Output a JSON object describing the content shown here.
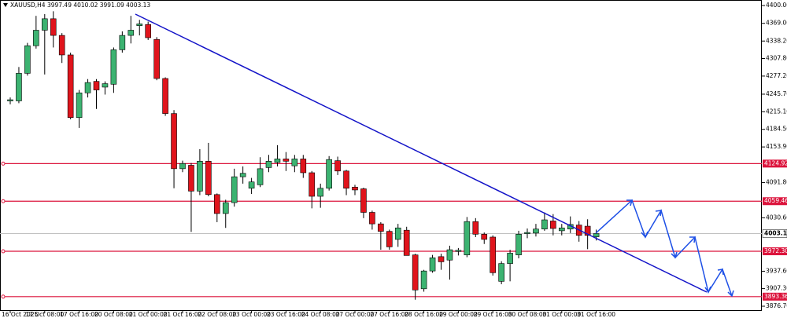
{
  "chart_data": {
    "type": "candlestick",
    "title": "XAUUSD,H4  3997.49 4010.02 3991.09 4003.13",
    "categories": [
      "16 Oct 2025",
      null,
      null,
      null,
      "17 Oct 08:00",
      null,
      null,
      null,
      "17 Oct 16:00",
      null,
      null,
      null,
      "20 Oct 08:00",
      null,
      null,
      null,
      "21 Oct 00:00",
      null,
      null,
      null,
      "21 Oct 16:00",
      null,
      null,
      null,
      "22 Oct 08:00",
      null,
      null,
      null,
      "23 Oct 00:00",
      null,
      null,
      null,
      "23 Oct 16:00",
      null,
      null,
      null,
      "24 Oct 08:00",
      null,
      null,
      null,
      "27 Oct 00:00",
      null,
      null,
      null,
      "27 Oct 16:00",
      null,
      null,
      null,
      "28 Oct 16:00",
      null,
      null,
      null,
      "29 Oct 00:00",
      null,
      null,
      null,
      "29 Oct 16:00",
      null,
      null,
      null,
      "30 Oct 08:00",
      null,
      null,
      null,
      "31 Oct 00:00",
      null,
      null,
      null,
      "31 Oct 16:00"
    ],
    "open": [
      4234,
      4234,
      4282,
      4330,
      4357,
      4377,
      4348,
      4314,
      4205,
      4248,
      4268,
      4258,
      4263,
      4323,
      4348,
      4365,
      4367,
      4341,
      4273,
      4212,
      4116,
      4122,
      4077,
      4129,
      4071,
      4038,
      4057,
      4102,
      4082,
      4088,
      4118,
      4127,
      4133,
      4121,
      4133,
      4109,
      4068,
      4082,
      4130,
      4112,
      4084,
      4081,
      4040,
      4020,
      4007,
      3993,
      4009,
      3966,
      3907,
      3938,
      3963,
      3957,
      3972,
      3966,
      4024,
      4002,
      3997,
      3920,
      3951,
      3966,
      4003,
      4004,
      4011,
      4025,
      4008,
      4011,
      4018,
      4016,
      3997.49
    ],
    "high": [
      4240,
      4293,
      4335,
      4382,
      4385,
      4390,
      4352,
      4318,
      4253,
      4272,
      4272,
      4268,
      4327,
      4355,
      4382,
      4375,
      4372,
      4345,
      4275,
      4218,
      4130,
      4126,
      4150,
      4161,
      4073,
      4062,
      4116,
      4120,
      4100,
      4136,
      4140,
      4157,
      4145,
      4140,
      4140,
      4112,
      4090,
      4138,
      4137,
      4114,
      4088,
      4083,
      4043,
      4023,
      4010,
      4020,
      4015,
      3968,
      3940,
      3966,
      3968,
      3982,
      3978,
      4032,
      4030,
      4005,
      4000,
      3955,
      3975,
      4008,
      4012,
      4020,
      4040,
      4037,
      4020,
      4033,
      4025,
      4028,
      4010.02
    ],
    "low": [
      4228,
      4230,
      4278,
      4325,
      4280,
      4327,
      4300,
      4202,
      4187,
      4240,
      4220,
      4245,
      4248,
      4318,
      4334,
      4348,
      4340,
      4270,
      4208,
      4082,
      4110,
      4006,
      4070,
      4068,
      4023,
      4013,
      4050,
      4090,
      4072,
      4084,
      4110,
      4120,
      4112,
      4110,
      4100,
      4047,
      4048,
      4078,
      4105,
      4070,
      4070,
      4030,
      4010,
      3975,
      3975,
      3980,
      3965,
      3888,
      3902,
      3935,
      3940,
      3923,
      3965,
      3962,
      3997,
      3985,
      3930,
      3915,
      3920,
      3960,
      3995,
      3998,
      4008,
      4000,
      4000,
      4004,
      3989,
      3976,
      3991.09
    ],
    "close": [
      4236,
      4282,
      4330,
      4357,
      4377,
      4348,
      4314,
      4205,
      4248,
      4266,
      4253,
      4264,
      4323,
      4348,
      4357,
      4368,
      4344,
      4273,
      4212,
      4116,
      4125,
      4077,
      4129,
      4071,
      4038,
      4057,
      4102,
      4108,
      4093,
      4116,
      4129,
      4133,
      4129,
      4133,
      4109,
      4068,
      4082,
      4132,
      4112,
      4082,
      4079,
      4040,
      4020,
      4007,
      3980,
      4013,
      3965,
      3905,
      3938,
      3961,
      3954,
      3975,
      3974,
      4024,
      4002,
      3993,
      3935,
      3951,
      3969,
      4002,
      4005,
      4011,
      4027,
      4012,
      4013,
      4019,
      4000,
      4000,
      4003.13
    ],
    "up_color": "#3cb371",
    "down_color": "#e0141c",
    "ylim": [
      3868.5,
      4409.6
    ],
    "yticks": [
      {
        "value": 4400.0,
        "label": "4400.00"
      },
      {
        "value": 4369.0,
        "label": "4369.00"
      },
      {
        "value": 4338.2,
        "label": "4338.20"
      },
      {
        "value": 4307.8,
        "label": "4307.80"
      },
      {
        "value": 4277.2,
        "label": "4277.20"
      },
      {
        "value": 4245.7,
        "label": "4245.70"
      },
      {
        "value": 4215.1,
        "label": "4215.10"
      },
      {
        "value": 4184.5,
        "label": "4184.50"
      },
      {
        "value": 4153.9,
        "label": "4153.90"
      },
      {
        "value": 4091.8,
        "label": "4091.80"
      },
      {
        "value": 4030.6,
        "label": "4030.60"
      },
      {
        "value": 3937.6,
        "label": "3937.60"
      },
      {
        "value": 3907.3,
        "label": "3907.30"
      },
      {
        "value": 3876.7,
        "label": "3876.70"
      }
    ],
    "levels": [
      {
        "value": 4124.92,
        "label": "4124.92"
      },
      {
        "value": 4059.46,
        "label": "4059.46"
      },
      {
        "value": 3972.3,
        "label": "3972.30"
      },
      {
        "value": 3893.36,
        "label": "3893.36"
      }
    ],
    "level_color": "#dc143c",
    "current_price": {
      "value": 4003.13,
      "label": "4003.13"
    }
  }
}
